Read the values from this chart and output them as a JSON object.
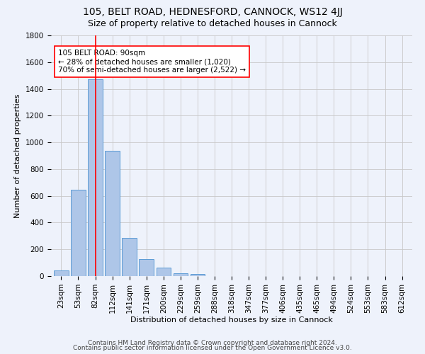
{
  "title1": "105, BELT ROAD, HEDNESFORD, CANNOCK, WS12 4JJ",
  "title2": "Size of property relative to detached houses in Cannock",
  "xlabel": "Distribution of detached houses by size in Cannock",
  "ylabel": "Number of detached properties",
  "bin_labels": [
    "23sqm",
    "53sqm",
    "82sqm",
    "112sqm",
    "141sqm",
    "171sqm",
    "200sqm",
    "229sqm",
    "259sqm",
    "288sqm",
    "318sqm",
    "347sqm",
    "377sqm",
    "406sqm",
    "435sqm",
    "465sqm",
    "494sqm",
    "524sqm",
    "553sqm",
    "583sqm",
    "612sqm"
  ],
  "bar_values": [
    40,
    648,
    1473,
    938,
    284,
    125,
    63,
    22,
    15,
    0,
    0,
    0,
    0,
    0,
    0,
    0,
    0,
    0,
    0,
    0,
    0
  ],
  "bar_color": "#aec6e8",
  "bar_edge_color": "#5b9bd5",
  "vline_x_index": 2,
  "vline_color": "red",
  "annotation_text": "105 BELT ROAD: 90sqm\n← 28% of detached houses are smaller (1,020)\n70% of semi-detached houses are larger (2,522) →",
  "annotation_box_color": "white",
  "annotation_box_edge_color": "red",
  "ylim": [
    0,
    1800
  ],
  "yticks": [
    0,
    200,
    400,
    600,
    800,
    1000,
    1200,
    1400,
    1600,
    1800
  ],
  "footer1": "Contains HM Land Registry data © Crown copyright and database right 2024.",
  "footer2": "Contains public sector information licensed under the Open Government Licence v3.0.",
  "background_color": "#eef2fb",
  "grid_color": "#c8c8c8",
  "title1_fontsize": 10,
  "title2_fontsize": 9,
  "axis_label_fontsize": 8,
  "tick_fontsize": 7.5,
  "annotation_fontsize": 7.5,
  "footer_fontsize": 6.5
}
